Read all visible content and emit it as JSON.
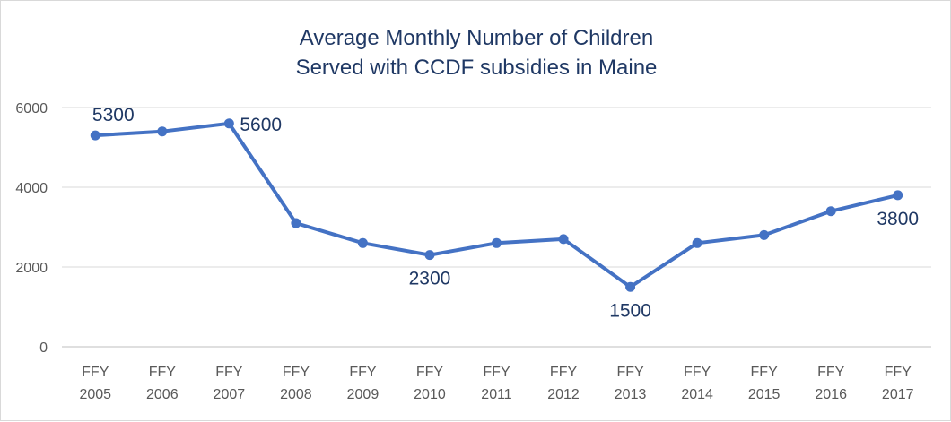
{
  "chart_data": {
    "type": "line",
    "title": [
      "Average Monthly Number of Children",
      "Served with CCDF subsidies in Maine"
    ],
    "xlabel": "",
    "ylabel": "",
    "categories": [
      [
        "FFY",
        "2005"
      ],
      [
        "FFY",
        "2006"
      ],
      [
        "FFY",
        "2007"
      ],
      [
        "FFY",
        "2008"
      ],
      [
        "FFY",
        "2009"
      ],
      [
        "FFY",
        "2010"
      ],
      [
        "FFY",
        "2011"
      ],
      [
        "FFY",
        "2012"
      ],
      [
        "FFY",
        "2013"
      ],
      [
        "FFY",
        "2014"
      ],
      [
        "FFY",
        "2015"
      ],
      [
        "FFY",
        "2016"
      ],
      [
        "FFY",
        "2017"
      ]
    ],
    "series": [
      {
        "values": [
          5300,
          5400,
          5600,
          3100,
          2600,
          2300,
          2600,
          2700,
          1500,
          2600,
          2800,
          3400,
          3800
        ],
        "color": "#4472c4"
      }
    ],
    "data_labels": [
      {
        "index": 0,
        "text": "5300",
        "position": "above"
      },
      {
        "index": 2,
        "text": "5600",
        "position": "right"
      },
      {
        "index": 5,
        "text": "2300",
        "position": "below"
      },
      {
        "index": 8,
        "text": "1500",
        "position": "below"
      },
      {
        "index": 12,
        "text": "3800",
        "position": "below"
      }
    ],
    "ylim": [
      0,
      6000
    ],
    "yticks": [
      "0",
      "2000",
      "4000",
      "6000"
    ],
    "grid": true,
    "legend": "none"
  }
}
